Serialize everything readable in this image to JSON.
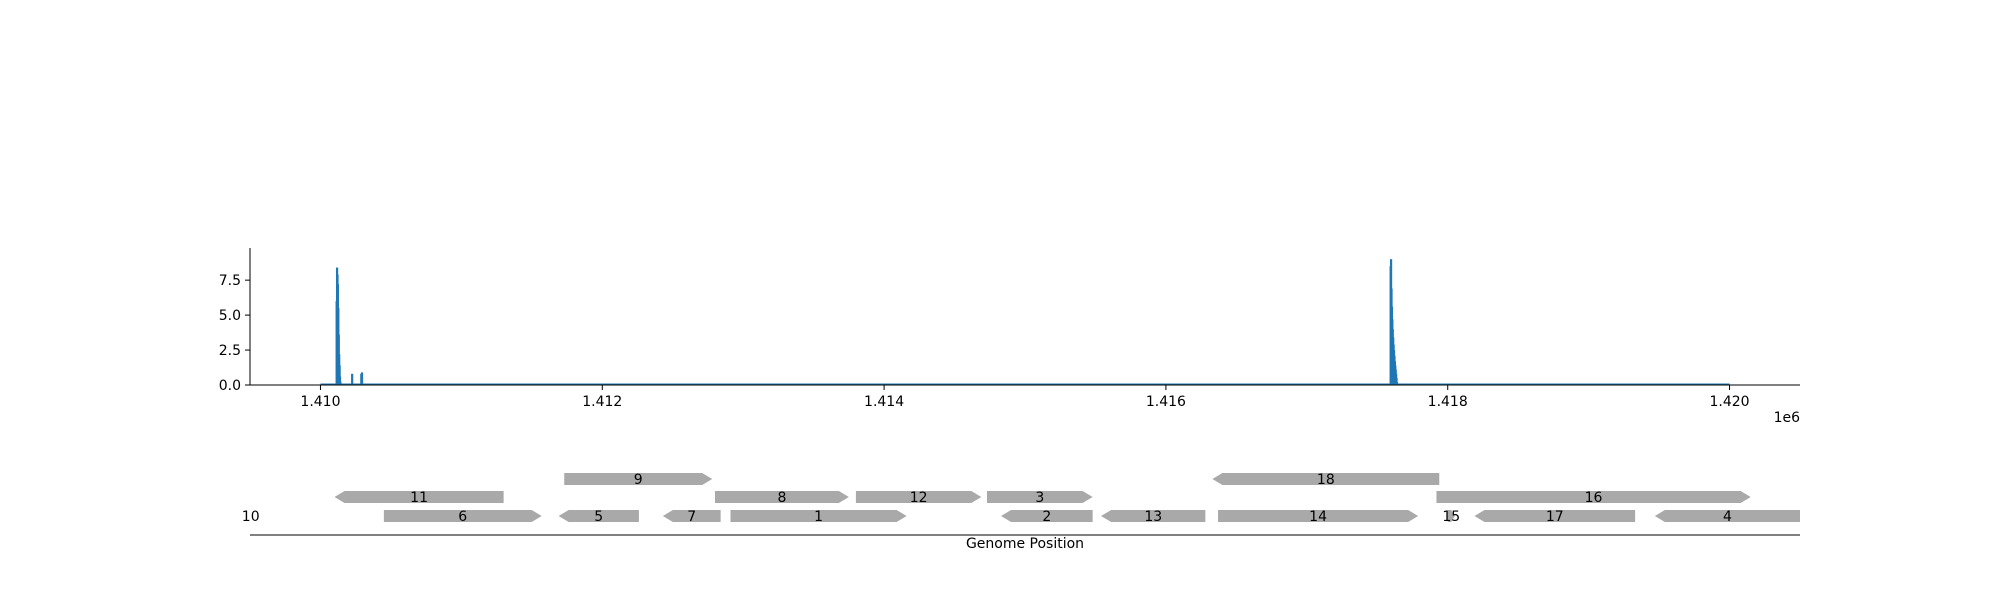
{
  "chart_data": [
    {
      "type": "bar",
      "title": "",
      "xlabel": "",
      "ylabel": "",
      "x_offset_label": "1e6",
      "xlim": [
        1409500,
        1420500
      ],
      "ylim": [
        0,
        9.8
      ],
      "x_ticks": [
        1410000,
        1412000,
        1414000,
        1416000,
        1418000,
        1420000
      ],
      "x_tick_labels": [
        "1.410",
        "1.412",
        "1.414",
        "1.416",
        "1.418",
        "1.420"
      ],
      "y_ticks": [
        0,
        2.5,
        5.0,
        7.5
      ],
      "y_tick_labels": [
        "0.0",
        "2.5",
        "5.0",
        "7.5"
      ],
      "grid": false,
      "baseline_range": [
        1410000,
        1420000
      ],
      "series": [
        {
          "color": "#1f77b4",
          "x": [
            1410115,
            1410118,
            1410121,
            1410124,
            1410127,
            1410130,
            1410133,
            1410136,
            1410139,
            1410142,
            1410225,
            1410290,
            1410295,
            1417595,
            1417598,
            1417601,
            1417604,
            1417607,
            1417610,
            1417613,
            1417616,
            1417619,
            1417622,
            1417625,
            1417628,
            1417631,
            1417634,
            1417637,
            1417640
          ],
          "values": [
            6.0,
            8.4,
            7.9,
            7.2,
            5.5,
            3.6,
            2.2,
            1.4,
            0.6,
            0.2,
            0.8,
            0.8,
            0.9,
            8.5,
            9.0,
            6.9,
            5.6,
            4.7,
            4.0,
            3.4,
            2.9,
            2.5,
            2.1,
            1.7,
            1.4,
            1.1,
            0.8,
            0.5,
            0.2
          ]
        }
      ]
    },
    {
      "type": "gene_map",
      "xlabel": "Genome Position",
      "xlim": [
        1409500,
        1420500
      ],
      "gene_color": "#a9a9a9",
      "genes": [
        {
          "label": "11",
          "start": 1410100,
          "end": 1411300,
          "strand": "-",
          "row": 1
        },
        {
          "label": "6",
          "start": 1410450,
          "end": 1411570,
          "strand": "+",
          "row": 0
        },
        {
          "label": "9",
          "start": 1411730,
          "end": 1412780,
          "strand": "+",
          "row": 2
        },
        {
          "label": "5",
          "start": 1411690,
          "end": 1412260,
          "strand": "-",
          "row": 0
        },
        {
          "label": "7",
          "start": 1412430,
          "end": 1412840,
          "strand": "-",
          "row": 0
        },
        {
          "label": "8",
          "start": 1412800,
          "end": 1413750,
          "strand": "+",
          "row": 1
        },
        {
          "label": "1",
          "start": 1412910,
          "end": 1414160,
          "strand": "+",
          "row": 0
        },
        {
          "label": "12",
          "start": 1413800,
          "end": 1414690,
          "strand": "+",
          "row": 1
        },
        {
          "label": "3",
          "start": 1414730,
          "end": 1415480,
          "strand": "+",
          "row": 1
        },
        {
          "label": "2",
          "start": 1414830,
          "end": 1415480,
          "strand": "-",
          "row": 0
        },
        {
          "label": "13",
          "start": 1415540,
          "end": 1416280,
          "strand": "-",
          "row": 0
        },
        {
          "label": "14",
          "start": 1416370,
          "end": 1417790,
          "strand": "+",
          "row": 0
        },
        {
          "label": "18",
          "start": 1416330,
          "end": 1417940,
          "strand": "-",
          "row": 2
        },
        {
          "label": "16",
          "start": 1417920,
          "end": 1420150,
          "strand": "+",
          "row": 1
        },
        {
          "label": "15",
          "start": 1418000,
          "end": 1418050,
          "strand": "+",
          "row": 0
        },
        {
          "label": "17",
          "start": 1418190,
          "end": 1419330,
          "strand": "-",
          "row": 0
        },
        {
          "label": "4",
          "start": 1419470,
          "end": 1420500,
          "strand": "-",
          "row": 0
        },
        {
          "label": "10",
          "start": 1409500,
          "end": 1409510,
          "strand": "+",
          "row": 0
        }
      ]
    }
  ]
}
